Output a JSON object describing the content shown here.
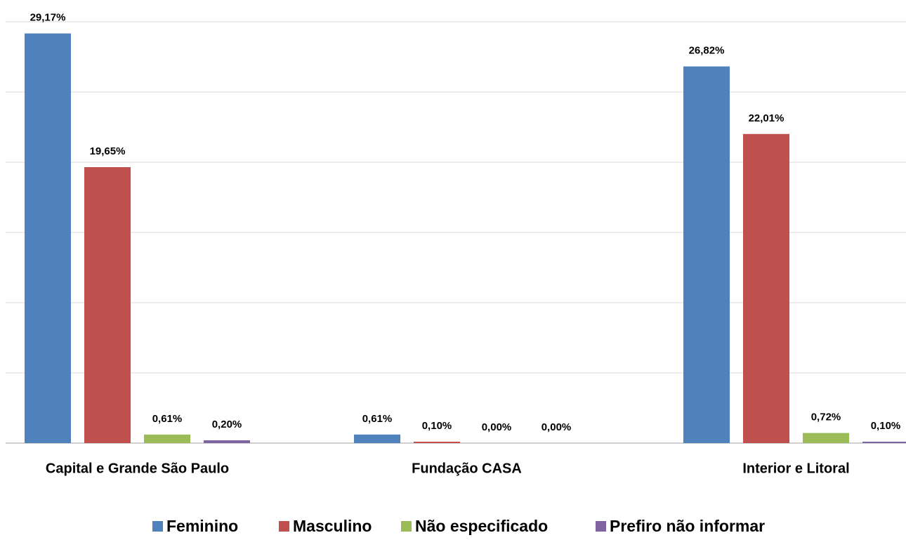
{
  "chart_data": {
    "type": "bar",
    "categories": [
      "Capital e Grande São Paulo",
      "Fundação CASA",
      "Interior e Litoral"
    ],
    "series": [
      {
        "name": "Feminino",
        "color": "#4f81bd",
        "values": [
          29.17,
          0.61,
          26.82
        ],
        "value_labels": [
          "29,17%",
          "0,61%",
          "26,82%"
        ]
      },
      {
        "name": "Masculino",
        "color": "#c0504d",
        "values": [
          19.65,
          0.1,
          22.01
        ],
        "value_labels": [
          "19,65%",
          "0,10%",
          "22,01%"
        ]
      },
      {
        "name": "Não especificado",
        "color": "#9bbb59",
        "values": [
          0.61,
          0.0,
          0.72
        ],
        "value_labels": [
          "0,61%",
          "0,00%",
          "0,72%"
        ]
      },
      {
        "name": "Prefiro não informar",
        "color": "#8064a2",
        "values": [
          0.2,
          0.0,
          0.1
        ],
        "value_labels": [
          "0,20%",
          "0,00%",
          "0,10%"
        ]
      }
    ],
    "ylim": [
      0,
      30
    ],
    "yticks": [
      0,
      5,
      10,
      15,
      20,
      25,
      30
    ],
    "grid": true,
    "legend": "bottom"
  }
}
